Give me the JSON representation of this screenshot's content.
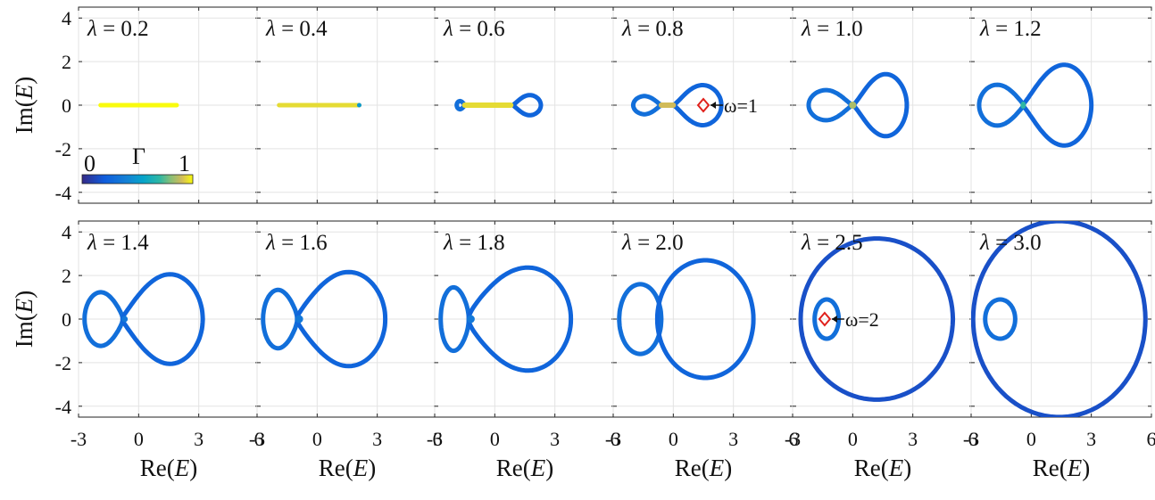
{
  "chart_data": {
    "type": "scatter",
    "description_units": "complex energy spectrum E (Re(E), Im(E)) colored by fractal dimension Γ",
    "xlabel": "Re(E)",
    "ylabel": "Im(E)",
    "xlim": [
      -3,
      6
    ],
    "ylim": [
      -4.5,
      4.5
    ],
    "xticks": [
      -3,
      0,
      3,
      6
    ],
    "yticks": [
      -4,
      -2,
      0,
      2,
      4
    ],
    "grid": true,
    "colorbar": {
      "label": "Γ",
      "min": "0",
      "max": "1",
      "min_value": 0,
      "max_value": 1,
      "placement": "inside top-left panel, lower-left",
      "colormap": "parula"
    },
    "panels": [
      {
        "label": "λ = 0.2",
        "lambda": 0.2,
        "segment": [
          -1.9,
          1.9
        ],
        "bulk_gamma": 1.0
      },
      {
        "label": "λ = 0.4",
        "lambda": 0.4,
        "segment": [
          -1.9,
          2.1
        ],
        "bulk_gamma": 0.95
      },
      {
        "label": "λ = 0.6",
        "lambda": 0.6,
        "segment": [
          -1.5,
          0.8
        ],
        "left_loop": [
          -1.9,
          -1.5,
          0.2
        ],
        "right_loop": [
          0.9,
          2.3,
          0.5
        ],
        "bulk_gamma": 0.95
      },
      {
        "label": "λ = 0.8",
        "lambda": 0.8,
        "segment": [
          -0.6,
          0.0
        ],
        "left_loop": [
          -2.0,
          -0.6,
          0.45
        ],
        "right_loop": [
          0.0,
          2.4,
          1.0
        ],
        "bulk_gamma": 0.9,
        "marker": {
          "re": 1.5,
          "im": 0.0,
          "label": "ω=1"
        }
      },
      {
        "label": "λ = 1.0",
        "lambda": 1.0,
        "left_loop": [
          -2.2,
          0.0,
          0.75
        ],
        "right_loop": [
          0.0,
          2.7,
          1.55
        ],
        "bulk_gamma": 0.85
      },
      {
        "label": "λ = 1.2",
        "lambda": 1.2,
        "left_loop": [
          -2.6,
          -0.4,
          1.0
        ],
        "right_loop": [
          -0.4,
          3.0,
          2.0
        ],
        "neck": 0.3,
        "bulk_gamma": 0.75
      },
      {
        "label": "λ = 1.4",
        "lambda": 1.4,
        "left_loop": [
          -2.7,
          -0.8,
          1.3
        ],
        "right_loop": [
          -0.8,
          3.2,
          2.2
        ],
        "neck": 0.6,
        "bulk_gamma": 0.6
      },
      {
        "label": "λ = 1.6",
        "lambda": 1.6,
        "left_loop": [
          -2.7,
          -1.0,
          1.4
        ],
        "right_loop": [
          -1.0,
          3.4,
          2.3
        ],
        "neck": 0.8,
        "bulk_gamma": 0.55
      },
      {
        "label": "λ = 1.8",
        "lambda": 1.8,
        "left_loop": [
          -2.7,
          -1.3,
          1.5
        ],
        "right_loop": [
          -1.3,
          3.8,
          2.5
        ],
        "neck": 1.1,
        "bulk_gamma": 0.5
      },
      {
        "label": "λ = 2.0",
        "lambda": 2.0,
        "left_loop": [
          -2.7,
          -0.6,
          1.6
        ],
        "right_loop": [
          -0.8,
          4.0,
          2.7
        ],
        "bulk_gamma": 0.45
      },
      {
        "label": "λ = 2.5",
        "lambda": 2.5,
        "small_loop": [
          -1.9,
          -0.7,
          0.9
        ],
        "big_loop": [
          -2.6,
          5.0,
          3.7
        ],
        "bulk_gamma": 0.35,
        "marker": {
          "re": -1.4,
          "im": 0.0,
          "label": "ω=2"
        }
      },
      {
        "label": "λ = 3.0",
        "lambda": 3.0,
        "small_loop": [
          -2.3,
          -0.8,
          0.9
        ],
        "big_loop": [
          -2.9,
          5.7,
          4.5
        ],
        "bulk_gamma": 0.35
      }
    ]
  }
}
